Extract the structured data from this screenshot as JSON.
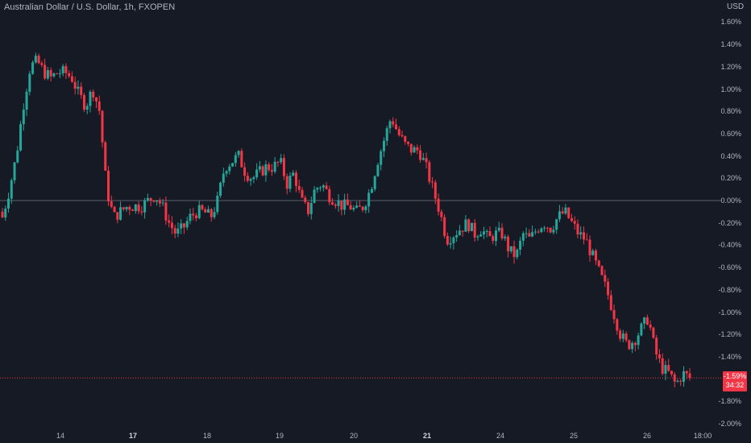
{
  "header": {
    "title": "Australian Dollar / U.S. Dollar, 1h, FXOPEN",
    "currency": "USD"
  },
  "price_badge": {
    "value": "-1.59%",
    "countdown": "34:32"
  },
  "colors": {
    "background": "#161a25",
    "up": "#26a69a",
    "down": "#f23645",
    "zero_line": "#5d606b",
    "current_line": "#f23645",
    "text": "#b2b5be"
  },
  "chart_data": {
    "type": "candlestick",
    "title": "Australian Dollar / U.S. Dollar, 1h, FXOPEN",
    "ylabel": "USD",
    "y_unit": "%",
    "ylim": [
      -2.0,
      1.6
    ],
    "yticks": [
      1.6,
      1.4,
      1.2,
      1.0,
      0.8,
      0.6,
      0.4,
      0.2,
      0.0,
      -0.2,
      -0.4,
      -0.6,
      -0.8,
      -1.0,
      -1.2,
      -1.4,
      -1.8,
      -2.0
    ],
    "ytick_labels": [
      "1.60%",
      "1.40%",
      "1.20%",
      "1.00%",
      "0.80%",
      "0.60%",
      "0.40%",
      "0.20%",
      "0.00%",
      "-0.20%",
      "-0.40%",
      "-0.60%",
      "-0.80%",
      "-1.00%",
      "-1.20%",
      "-1.40%",
      "-1.80%",
      "-2.00%"
    ],
    "xlabels": [
      {
        "label": "14",
        "bold": false
      },
      {
        "label": "17",
        "bold": true
      },
      {
        "label": "18",
        "bold": false
      },
      {
        "label": "19",
        "bold": false
      },
      {
        "label": "20",
        "bold": false
      },
      {
        "label": "21",
        "bold": true
      },
      {
        "label": "24",
        "bold": false
      },
      {
        "label": "25",
        "bold": false
      },
      {
        "label": "26",
        "bold": false
      },
      {
        "label": "18:00",
        "bold": false
      }
    ],
    "last_value": -1.59,
    "zero_line": 0.0,
    "path": [
      -0.15,
      0.1,
      0.4,
      0.85,
      1.2,
      1.25,
      1.15,
      1.1,
      1.15,
      1.15,
      1.1,
      0.95,
      0.85,
      1.0,
      0.8,
      0.1,
      -0.15,
      -0.1,
      -0.05,
      -0.05,
      -0.05,
      0.0,
      0.05,
      -0.05,
      -0.2,
      -0.3,
      -0.25,
      -0.15,
      -0.1,
      -0.1,
      -0.15,
      0.0,
      0.3,
      0.35,
      0.4,
      0.25,
      0.2,
      0.25,
      0.3,
      0.3,
      0.35,
      0.15,
      0.25,
      0.0,
      -0.1,
      0.1,
      0.15,
      0.05,
      0.0,
      -0.05,
      -0.05,
      -0.1,
      -0.05,
      0.1,
      0.35,
      0.55,
      0.75,
      0.6,
      0.5,
      0.45,
      0.45,
      0.3,
      0.1,
      -0.1,
      -0.35,
      -0.3,
      -0.25,
      -0.2,
      -0.3,
      -0.25,
      -0.35,
      -0.3,
      -0.3,
      -0.45,
      -0.5,
      -0.3,
      -0.35,
      -0.25,
      -0.2,
      -0.25,
      -0.15,
      -0.1,
      -0.2,
      -0.3,
      -0.35,
      -0.5,
      -0.65,
      -0.8,
      -1.0,
      -1.2,
      -1.3,
      -1.25,
      -1.15,
      -1.05,
      -1.35,
      -1.5,
      -1.55,
      -1.65,
      -1.55,
      -1.59
    ]
  }
}
